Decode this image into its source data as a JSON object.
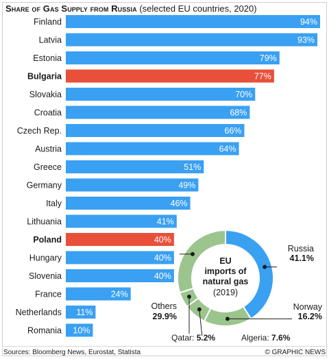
{
  "title": {
    "main": "Share of Gas Supply from Russia",
    "sub": "(selected EU countries, 2020)"
  },
  "colors": {
    "bar": "#3aa0f2",
    "highlight": "#e8503a",
    "donut_russia": "#3aa0f2",
    "donut_other": "#9cc58e",
    "label_text": "#ffffff"
  },
  "chart_data": [
    {
      "type": "bar",
      "orientation": "horizontal",
      "title": "Share of Gas Supply from Russia (selected EU countries, 2020)",
      "categories": [
        "Finland",
        "Latvia",
        "Estonia",
        "Bulgaria",
        "Slovakia",
        "Croatia",
        "Czech Rep.",
        "Austria",
        "Greece",
        "Germany",
        "Italy",
        "Lithuania",
        "Poland",
        "Hungary",
        "Slovenia",
        "France",
        "Netherlands",
        "Romania"
      ],
      "values": [
        94,
        93,
        79,
        77,
        70,
        68,
        66,
        64,
        51,
        49,
        46,
        41,
        40,
        40,
        40,
        24,
        11,
        10
      ],
      "value_labels": [
        "94%",
        "93%",
        "79%",
        "77%",
        "70%",
        "68%",
        "66%",
        "64%",
        "51%",
        "49%",
        "46%",
        "41%",
        "40%",
        "40%",
        "40%",
        "24%",
        "11%",
        "10%"
      ],
      "highlighted": [
        "Bulgaria",
        "Poland"
      ],
      "xlim": [
        0,
        100
      ],
      "grid": false,
      "legend": "none"
    },
    {
      "type": "pie",
      "style": "donut",
      "center_label": [
        "EU",
        "imports of",
        "natural gas",
        "(2019)"
      ],
      "slices": [
        {
          "label": "Russia",
          "value": 41.1,
          "value_label": "41.1%"
        },
        {
          "label": "Norway",
          "value": 16.2,
          "value_label": "16.2%"
        },
        {
          "label": "Algeria:",
          "value": 7.6,
          "value_label": "7.6%"
        },
        {
          "label": "Qatar:",
          "value": 5.2,
          "value_label": "5.2%"
        },
        {
          "label": "Others",
          "value": 29.9,
          "value_label": "29.9%"
        }
      ]
    }
  ],
  "footer": {
    "sources": "Sources: Bloomberg News, Eurostat, Statista",
    "credit": "© GRAPHIC NEWS"
  }
}
